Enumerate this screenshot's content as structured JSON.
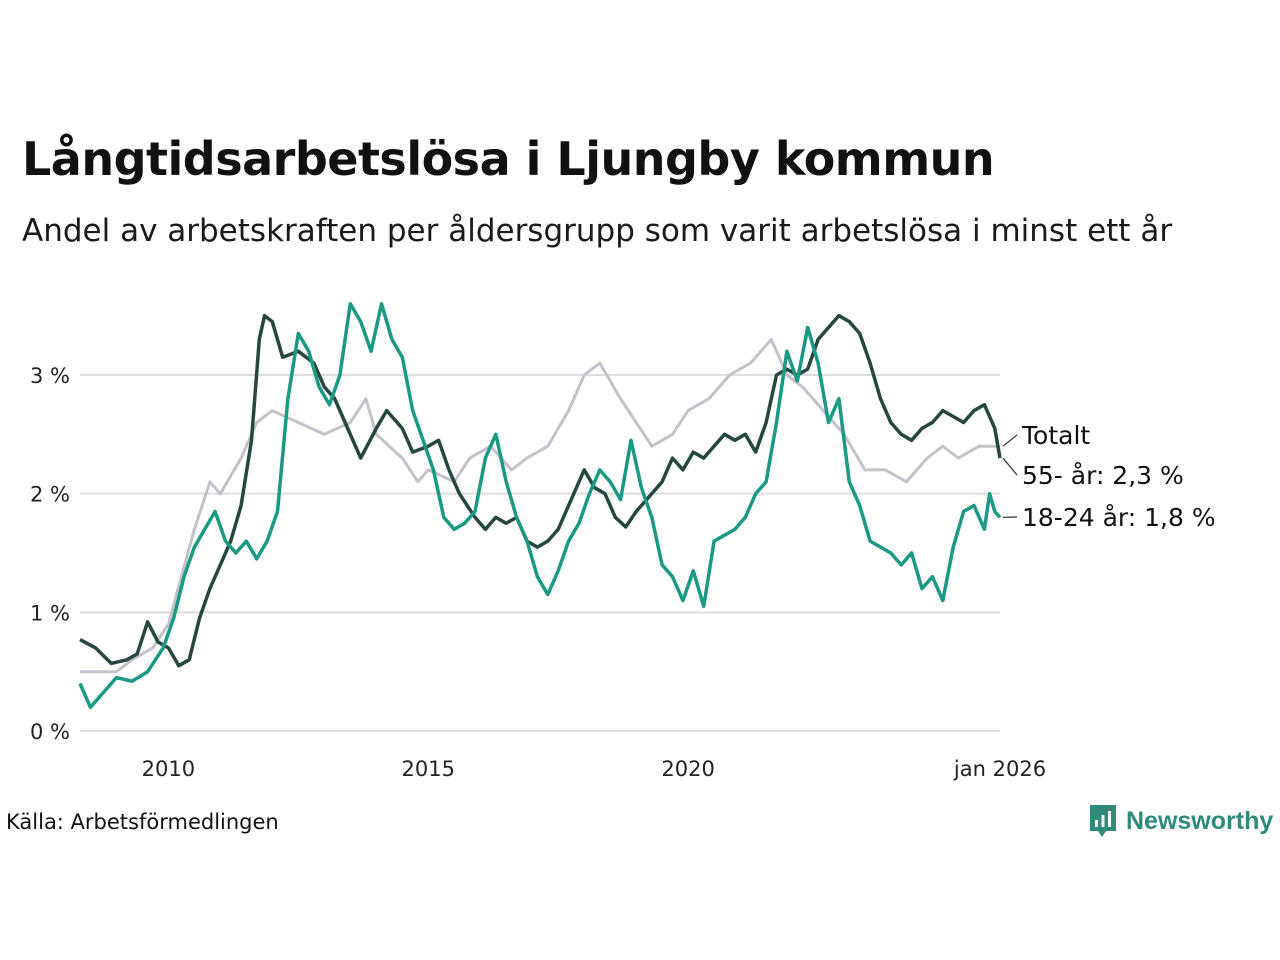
{
  "chart_data": {
    "type": "line",
    "title": "Långtidsarbetslösa i Ljungby kommun",
    "subtitle": "Andel av arbetskraften per åldersgrupp som varit arbetslösa i minst ett år",
    "xlabel": "",
    "ylabel": "",
    "x_range": [
      2008.3,
      2026.0
    ],
    "ylim": [
      0,
      3.7
    ],
    "y_ticks": [
      {
        "value": 0,
        "label": "0 %"
      },
      {
        "value": 1,
        "label": "1 %"
      },
      {
        "value": 2,
        "label": "2 %"
      },
      {
        "value": 3,
        "label": "3 %"
      }
    ],
    "x_ticks": [
      {
        "value": 2010,
        "label": "2010"
      },
      {
        "value": 2015,
        "label": "2015"
      },
      {
        "value": 2020,
        "label": "2020"
      },
      {
        "value": 2026,
        "label": "jan 2026"
      }
    ],
    "grid": true,
    "series": [
      {
        "name": "Totalt",
        "label": "Totalt",
        "color": "#c4c1ca",
        "points": [
          [
            2008.3,
            0.5
          ],
          [
            2009.0,
            0.5
          ],
          [
            2009.3,
            0.6
          ],
          [
            2009.7,
            0.7
          ],
          [
            2010.0,
            0.9
          ],
          [
            2010.5,
            1.7
          ],
          [
            2010.8,
            2.1
          ],
          [
            2011.0,
            2.0
          ],
          [
            2011.4,
            2.3
          ],
          [
            2011.7,
            2.6
          ],
          [
            2012.0,
            2.7
          ],
          [
            2012.5,
            2.6
          ],
          [
            2013.0,
            2.5
          ],
          [
            2013.5,
            2.6
          ],
          [
            2013.8,
            2.8
          ],
          [
            2014.0,
            2.5
          ],
          [
            2014.5,
            2.3
          ],
          [
            2014.8,
            2.1
          ],
          [
            2015.0,
            2.2
          ],
          [
            2015.5,
            2.1
          ],
          [
            2015.8,
            2.3
          ],
          [
            2016.2,
            2.4
          ],
          [
            2016.6,
            2.2
          ],
          [
            2016.9,
            2.3
          ],
          [
            2017.3,
            2.4
          ],
          [
            2017.7,
            2.7
          ],
          [
            2018.0,
            3.0
          ],
          [
            2018.3,
            3.1
          ],
          [
            2018.7,
            2.8
          ],
          [
            2019.0,
            2.6
          ],
          [
            2019.3,
            2.4
          ],
          [
            2019.7,
            2.5
          ],
          [
            2020.0,
            2.7
          ],
          [
            2020.4,
            2.8
          ],
          [
            2020.8,
            3.0
          ],
          [
            2021.2,
            3.1
          ],
          [
            2021.6,
            3.3
          ],
          [
            2021.9,
            3.0
          ],
          [
            2022.2,
            2.9
          ],
          [
            2022.6,
            2.7
          ],
          [
            2023.0,
            2.5
          ],
          [
            2023.4,
            2.2
          ],
          [
            2023.8,
            2.2
          ],
          [
            2024.2,
            2.1
          ],
          [
            2024.6,
            2.3
          ],
          [
            2024.9,
            2.4
          ],
          [
            2025.2,
            2.3
          ],
          [
            2025.6,
            2.4
          ],
          [
            2026.0,
            2.4
          ]
        ]
      },
      {
        "name": "55- år",
        "label": "55- år: 2,3 %",
        "color": "#25473f",
        "points": [
          [
            2008.3,
            0.77
          ],
          [
            2008.6,
            0.7
          ],
          [
            2008.9,
            0.57
          ],
          [
            2009.2,
            0.6
          ],
          [
            2009.4,
            0.65
          ],
          [
            2009.6,
            0.92
          ],
          [
            2009.8,
            0.75
          ],
          [
            2010.0,
            0.7
          ],
          [
            2010.2,
            0.55
          ],
          [
            2010.4,
            0.6
          ],
          [
            2010.6,
            0.95
          ],
          [
            2010.8,
            1.2
          ],
          [
            2011.0,
            1.4
          ],
          [
            2011.2,
            1.6
          ],
          [
            2011.4,
            1.9
          ],
          [
            2011.6,
            2.45
          ],
          [
            2011.75,
            3.3
          ],
          [
            2011.85,
            3.5
          ],
          [
            2012.0,
            3.45
          ],
          [
            2012.2,
            3.15
          ],
          [
            2012.5,
            3.2
          ],
          [
            2012.8,
            3.1
          ],
          [
            2013.0,
            2.9
          ],
          [
            2013.2,
            2.8
          ],
          [
            2013.4,
            2.6
          ],
          [
            2013.7,
            2.3
          ],
          [
            2014.0,
            2.55
          ],
          [
            2014.2,
            2.7
          ],
          [
            2014.5,
            2.55
          ],
          [
            2014.7,
            2.35
          ],
          [
            2015.0,
            2.4
          ],
          [
            2015.2,
            2.45
          ],
          [
            2015.4,
            2.2
          ],
          [
            2015.6,
            2.0
          ],
          [
            2015.9,
            1.8
          ],
          [
            2016.1,
            1.7
          ],
          [
            2016.3,
            1.8
          ],
          [
            2016.5,
            1.75
          ],
          [
            2016.7,
            1.8
          ],
          [
            2016.9,
            1.6
          ],
          [
            2017.1,
            1.55
          ],
          [
            2017.3,
            1.6
          ],
          [
            2017.5,
            1.7
          ],
          [
            2017.8,
            2.0
          ],
          [
            2018.0,
            2.2
          ],
          [
            2018.2,
            2.05
          ],
          [
            2018.4,
            2.0
          ],
          [
            2018.6,
            1.8
          ],
          [
            2018.8,
            1.72
          ],
          [
            2019.0,
            1.85
          ],
          [
            2019.2,
            1.95
          ],
          [
            2019.5,
            2.1
          ],
          [
            2019.7,
            2.3
          ],
          [
            2019.9,
            2.2
          ],
          [
            2020.1,
            2.35
          ],
          [
            2020.3,
            2.3
          ],
          [
            2020.5,
            2.4
          ],
          [
            2020.7,
            2.5
          ],
          [
            2020.9,
            2.45
          ],
          [
            2021.1,
            2.5
          ],
          [
            2021.3,
            2.35
          ],
          [
            2021.5,
            2.6
          ],
          [
            2021.7,
            3.0
          ],
          [
            2021.9,
            3.05
          ],
          [
            2022.1,
            3.0
          ],
          [
            2022.3,
            3.05
          ],
          [
            2022.5,
            3.3
          ],
          [
            2022.7,
            3.4
          ],
          [
            2022.9,
            3.5
          ],
          [
            2023.1,
            3.45
          ],
          [
            2023.3,
            3.35
          ],
          [
            2023.5,
            3.1
          ],
          [
            2023.7,
            2.8
          ],
          [
            2023.9,
            2.6
          ],
          [
            2024.1,
            2.5
          ],
          [
            2024.3,
            2.45
          ],
          [
            2024.5,
            2.55
          ],
          [
            2024.7,
            2.6
          ],
          [
            2024.9,
            2.7
          ],
          [
            2025.1,
            2.65
          ],
          [
            2025.3,
            2.6
          ],
          [
            2025.5,
            2.7
          ],
          [
            2025.7,
            2.75
          ],
          [
            2025.9,
            2.55
          ],
          [
            2026.0,
            2.3
          ]
        ]
      },
      {
        "name": "18-24 år",
        "label": "18-24 år: 1,8 %",
        "color": "#1a9985",
        "points": [
          [
            2008.3,
            0.4
          ],
          [
            2008.5,
            0.2
          ],
          [
            2008.8,
            0.35
          ],
          [
            2009.0,
            0.45
          ],
          [
            2009.3,
            0.42
          ],
          [
            2009.6,
            0.5
          ],
          [
            2009.9,
            0.7
          ],
          [
            2010.1,
            0.95
          ],
          [
            2010.3,
            1.3
          ],
          [
            2010.5,
            1.55
          ],
          [
            2010.7,
            1.7
          ],
          [
            2010.9,
            1.85
          ],
          [
            2011.1,
            1.6
          ],
          [
            2011.3,
            1.5
          ],
          [
            2011.5,
            1.6
          ],
          [
            2011.7,
            1.45
          ],
          [
            2011.9,
            1.6
          ],
          [
            2012.1,
            1.85
          ],
          [
            2012.3,
            2.8
          ],
          [
            2012.5,
            3.35
          ],
          [
            2012.7,
            3.2
          ],
          [
            2012.9,
            2.9
          ],
          [
            2013.1,
            2.75
          ],
          [
            2013.3,
            3.0
          ],
          [
            2013.5,
            3.6
          ],
          [
            2013.7,
            3.45
          ],
          [
            2013.9,
            3.2
          ],
          [
            2014.1,
            3.6
          ],
          [
            2014.3,
            3.3
          ],
          [
            2014.5,
            3.15
          ],
          [
            2014.7,
            2.7
          ],
          [
            2014.9,
            2.45
          ],
          [
            2015.1,
            2.2
          ],
          [
            2015.3,
            1.8
          ],
          [
            2015.5,
            1.7
          ],
          [
            2015.7,
            1.75
          ],
          [
            2015.9,
            1.85
          ],
          [
            2016.1,
            2.3
          ],
          [
            2016.3,
            2.5
          ],
          [
            2016.5,
            2.1
          ],
          [
            2016.7,
            1.8
          ],
          [
            2016.9,
            1.6
          ],
          [
            2017.1,
            1.3
          ],
          [
            2017.3,
            1.15
          ],
          [
            2017.5,
            1.35
          ],
          [
            2017.7,
            1.6
          ],
          [
            2017.9,
            1.75
          ],
          [
            2018.1,
            2.0
          ],
          [
            2018.3,
            2.2
          ],
          [
            2018.5,
            2.1
          ],
          [
            2018.7,
            1.95
          ],
          [
            2018.9,
            2.45
          ],
          [
            2019.1,
            2.05
          ],
          [
            2019.3,
            1.8
          ],
          [
            2019.5,
            1.4
          ],
          [
            2019.7,
            1.3
          ],
          [
            2019.9,
            1.1
          ],
          [
            2020.1,
            1.35
          ],
          [
            2020.3,
            1.05
          ],
          [
            2020.5,
            1.6
          ],
          [
            2020.7,
            1.65
          ],
          [
            2020.9,
            1.7
          ],
          [
            2021.1,
            1.8
          ],
          [
            2021.3,
            2.0
          ],
          [
            2021.5,
            2.1
          ],
          [
            2021.7,
            2.6
          ],
          [
            2021.9,
            3.2
          ],
          [
            2022.1,
            2.95
          ],
          [
            2022.3,
            3.4
          ],
          [
            2022.5,
            3.1
          ],
          [
            2022.7,
            2.6
          ],
          [
            2022.9,
            2.8
          ],
          [
            2023.1,
            2.1
          ],
          [
            2023.3,
            1.9
          ],
          [
            2023.5,
            1.6
          ],
          [
            2023.7,
            1.55
          ],
          [
            2023.9,
            1.5
          ],
          [
            2024.1,
            1.4
          ],
          [
            2024.3,
            1.5
          ],
          [
            2024.5,
            1.2
          ],
          [
            2024.7,
            1.3
          ],
          [
            2024.9,
            1.1
          ],
          [
            2025.1,
            1.55
          ],
          [
            2025.3,
            1.85
          ],
          [
            2025.5,
            1.9
          ],
          [
            2025.7,
            1.7
          ],
          [
            2025.8,
            2.0
          ],
          [
            2025.9,
            1.85
          ],
          [
            2026.0,
            1.8
          ]
        ]
      }
    ]
  },
  "source": "Källa: Arbetsförmedlingen",
  "logo": {
    "text": "Newsworthy",
    "icon": "bar-chart-icon",
    "color": "#2e8b7a"
  }
}
